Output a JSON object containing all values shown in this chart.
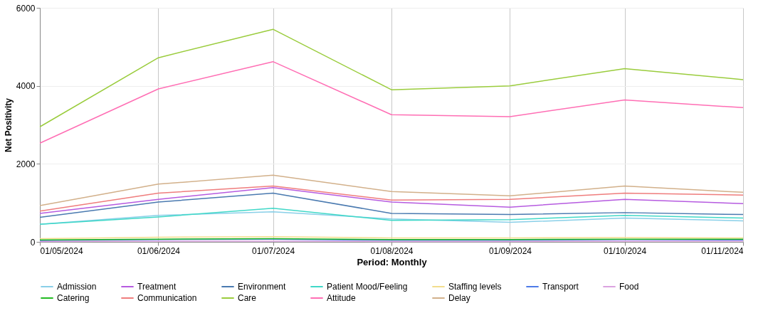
{
  "chart_data": {
    "type": "line",
    "xlabel": "Period: Monthly",
    "ylabel": "Net Positivity",
    "x": [
      "2024-05-01",
      "2024-06-01",
      "2024-07-01",
      "2024-08-01",
      "2024-09-01",
      "2024-10-01",
      "2024-11-01"
    ],
    "xlim": [
      "2024-05-01",
      "2024-11-01"
    ],
    "xticks": [
      {
        "value": "2024-05-01",
        "label": "01/05/2024"
      },
      {
        "value": "2024-06-01",
        "label": "01/06/2024"
      },
      {
        "value": "2024-07-01",
        "label": "01/07/2024"
      },
      {
        "value": "2024-08-01",
        "label": "01/08/2024"
      },
      {
        "value": "2024-09-01",
        "label": "01/09/2024"
      },
      {
        "value": "2024-10-01",
        "label": "01/10/2024"
      },
      {
        "value": "2024-11-01",
        "label": "01/11/2024"
      }
    ],
    "ylim": [
      0,
      6000
    ],
    "yticks": [
      0,
      2000,
      4000,
      6000
    ],
    "grid": true,
    "legend": "bottom",
    "marker": "none",
    "line_style": "solid",
    "series": [
      {
        "name": "Admission",
        "color": "#89cfe8",
        "values": [
          450,
          680,
          770,
          590,
          500,
          610,
          540
        ]
      },
      {
        "name": "Treatment",
        "color": "#b65be0",
        "values": [
          730,
          1090,
          1390,
          1020,
          890,
          1090,
          980
        ]
      },
      {
        "name": "Environment",
        "color": "#4a7ab0",
        "values": [
          630,
          1020,
          1250,
          730,
          700,
          750,
          700
        ]
      },
      {
        "name": "Patient Mood/Feeling",
        "color": "#40d8c8",
        "values": [
          450,
          640,
          860,
          550,
          570,
          680,
          610
        ]
      },
      {
        "name": "Staffing levels",
        "color": "#f2dd8c",
        "values": [
          80,
          120,
          130,
          100,
          100,
          110,
          100
        ]
      },
      {
        "name": "Transport",
        "color": "#4d7be8",
        "values": [
          30,
          60,
          70,
          40,
          40,
          60,
          50
        ]
      },
      {
        "name": "Food",
        "color": "#dba3e0",
        "values": [
          10,
          20,
          20,
          10,
          10,
          20,
          20
        ]
      },
      {
        "name": "Catering",
        "color": "#22bb22",
        "values": [
          50,
          70,
          80,
          60,
          60,
          70,
          70
        ]
      },
      {
        "name": "Communication",
        "color": "#ef7d7d",
        "values": [
          790,
          1250,
          1430,
          1070,
          1090,
          1250,
          1200
        ]
      },
      {
        "name": "Care",
        "color": "#9acc3c",
        "values": [
          2950,
          4720,
          5450,
          3900,
          4000,
          4440,
          4160
        ]
      },
      {
        "name": "Attitude",
        "color": "#ff6eb4",
        "values": [
          2530,
          3920,
          4620,
          3260,
          3210,
          3640,
          3440
        ]
      },
      {
        "name": "Delay",
        "color": "#d2b08a",
        "values": [
          930,
          1480,
          1710,
          1290,
          1180,
          1430,
          1270
        ]
      }
    ]
  }
}
